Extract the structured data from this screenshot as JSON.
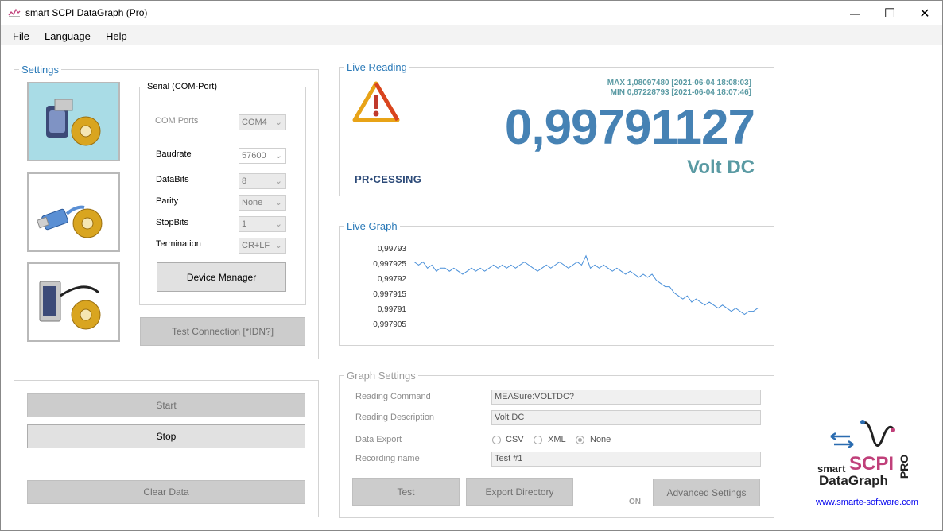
{
  "window": {
    "title": "smart SCPI DataGraph (Pro)",
    "minimize": "—",
    "maximize": "☐",
    "close": "✕"
  },
  "menu": [
    "File",
    "Language",
    "Help"
  ],
  "settings": {
    "legend": "Settings",
    "serial_legend": "Serial (COM-Port)",
    "com_ports_label": "COM Ports",
    "com_ports_value": "COM4",
    "baudrate_label": "Baudrate",
    "baudrate_value": "57600",
    "databits_label": "DataBits",
    "databits_value": "8",
    "parity_label": "Parity",
    "parity_value": "None",
    "stopbits_label": "StopBits",
    "stopbits_value": "1",
    "termination_label": "Termination",
    "termination_value": "CR+LF",
    "device_manager": "Device Manager",
    "test_connection": "Test Connection [*IDN?]"
  },
  "controls": {
    "start": "Start",
    "stop": "Stop",
    "clear": "Clear Data"
  },
  "live_reading": {
    "legend": "Live Reading",
    "max": "MAX 1,08097480 [2021-06-04 18:08:03]",
    "min": "MIN 0,87228793 [2021-06-04 18:07:46]",
    "value": "0,99791127",
    "unit": "Volt DC",
    "status": "PR•CESSING"
  },
  "live_graph": {
    "legend": "Live Graph",
    "y_ticks": [
      "0,99793",
      "0,997925",
      "0,99792",
      "0,997915",
      "0,99791",
      "0,997905"
    ]
  },
  "chart_data": {
    "type": "line",
    "title": "",
    "ylim": [
      0.997905,
      0.99793
    ],
    "y_ticks": [
      0.99793,
      0.997925,
      0.99792,
      0.997915,
      0.99791,
      0.997905
    ],
    "series": [
      {
        "values": [
          0.997926,
          0.997925,
          0.997926,
          0.997924,
          0.997925,
          0.997923,
          0.997924,
          0.997924,
          0.997923,
          0.997924,
          0.997923,
          0.997922,
          0.997923,
          0.997924,
          0.997923,
          0.997924,
          0.997923,
          0.997924,
          0.997925,
          0.997924,
          0.997925,
          0.997924,
          0.997925,
          0.997924,
          0.997925,
          0.997926,
          0.997925,
          0.997924,
          0.997923,
          0.997924,
          0.997925,
          0.997924,
          0.997925,
          0.997926,
          0.997925,
          0.997924,
          0.997925,
          0.997926,
          0.997925,
          0.997928,
          0.997924,
          0.997925,
          0.997924,
          0.997925,
          0.997924,
          0.997923,
          0.997924,
          0.997923,
          0.997922,
          0.997923,
          0.997922,
          0.997921,
          0.997922,
          0.997921,
          0.997922,
          0.99792,
          0.997919,
          0.997918,
          0.997918,
          0.997916,
          0.997915,
          0.997914,
          0.997915,
          0.997913,
          0.997914,
          0.997913,
          0.997912,
          0.997913,
          0.997912,
          0.997911,
          0.997912,
          0.997911,
          0.99791,
          0.997911,
          0.99791,
          0.997909,
          0.99791,
          0.99791,
          0.997911
        ]
      }
    ]
  },
  "graph_settings": {
    "legend": "Graph Settings",
    "reading_command_label": "Reading Command",
    "reading_command_value": "MEASure:VOLTDC?",
    "reading_description_label": "Reading Description",
    "reading_description_value": "Volt DC",
    "data_export_label": "Data Export",
    "export_options": [
      "CSV",
      "XML",
      "None"
    ],
    "recording_name_label": "Recording name",
    "recording_name_value": "Test #1",
    "test": "Test",
    "export_directory": "Export Directory",
    "on": "ON",
    "advanced": "Advanced Settings"
  },
  "logo": {
    "line1": "smart",
    "line2": "SCPI",
    "line3": "DataGraph",
    "pro": "PRO",
    "link": "www.smarte-software.com"
  },
  "colors": {
    "accent": "#2b7ab8",
    "reading": "#4682b4",
    "unit": "#5a9aa3",
    "warn": "#e8a317",
    "line": "#4a90d9"
  }
}
